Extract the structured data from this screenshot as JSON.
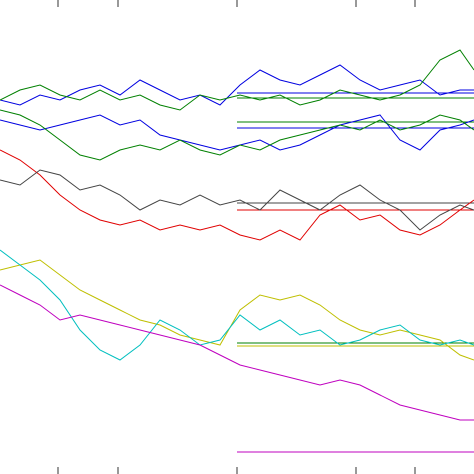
{
  "chart_data": {
    "type": "line",
    "x": [
      0,
      20,
      40,
      60,
      80,
      100,
      120,
      140,
      160,
      180,
      200,
      220,
      240,
      260,
      280,
      300,
      320,
      340,
      360,
      380,
      400,
      420,
      440,
      460,
      474
    ],
    "xlim": [
      0,
      474
    ],
    "ylim": [
      0,
      474
    ],
    "xticks": [
      58,
      118,
      237,
      356,
      415
    ],
    "series": [
      {
        "color": "#0000e0",
        "values": [
          374,
          369,
          379,
          374,
          384,
          389,
          379,
          394,
          384,
          374,
          379,
          369,
          389,
          404,
          394,
          389,
          399,
          409,
          394,
          384,
          389,
          394,
          379,
          384,
          384
        ]
      },
      {
        "color": "#0000e0",
        "values": [
          354,
          349,
          344,
          349,
          354,
          359,
          349,
          354,
          339,
          334,
          329,
          324,
          329,
          334,
          324,
          329,
          339,
          349,
          354,
          359,
          334,
          324,
          344,
          349,
          354
        ]
      },
      {
        "color": "#008000",
        "values": [
          374,
          384,
          389,
          379,
          374,
          384,
          374,
          379,
          369,
          364,
          379,
          374,
          379,
          374,
          379,
          369,
          374,
          384,
          379,
          374,
          379,
          389,
          414,
          424,
          404
        ]
      },
      {
        "color": "#008000",
        "values": [
          364,
          359,
          349,
          334,
          319,
          314,
          324,
          329,
          324,
          334,
          324,
          319,
          329,
          324,
          334,
          339,
          344,
          349,
          344,
          354,
          344,
          349,
          359,
          354,
          344
        ]
      },
      {
        "color": "#e00000",
        "values": [
          324,
          314,
          299,
          279,
          264,
          254,
          249,
          254,
          244,
          249,
          244,
          249,
          239,
          234,
          244,
          234,
          259,
          269,
          254,
          259,
          244,
          239,
          249,
          264,
          274
        ]
      },
      {
        "color": "#444444",
        "values": [
          294,
          289,
          304,
          299,
          284,
          289,
          279,
          264,
          274,
          269,
          279,
          269,
          274,
          264,
          284,
          274,
          264,
          279,
          289,
          274,
          264,
          244,
          259,
          269,
          264
        ]
      },
      {
        "color": "#bfbf00",
        "values": [
          204,
          209,
          214,
          199,
          184,
          174,
          164,
          154,
          149,
          139,
          134,
          129,
          164,
          179,
          174,
          179,
          169,
          154,
          144,
          139,
          144,
          139,
          134,
          119,
          114
        ]
      },
      {
        "color": "#00bfbf",
        "values": [
          224,
          209,
          194,
          174,
          144,
          124,
          114,
          129,
          154,
          144,
          129,
          134,
          159,
          144,
          154,
          139,
          144,
          129,
          134,
          144,
          149,
          134,
          129,
          134,
          129
        ]
      },
      {
        "color": "#bf00bf",
        "values": [
          189,
          179,
          169,
          154,
          159,
          154,
          149,
          144,
          139,
          134,
          129,
          119,
          109,
          104,
          99,
          94,
          89,
          94,
          89,
          79,
          69,
          64,
          59,
          54,
          54
        ]
      }
    ],
    "reference_lines": [
      {
        "color": "#0000e0",
        "value": 381,
        "x": [
          237,
          474
        ]
      },
      {
        "color": "#0000e0",
        "value": 346,
        "x": [
          237,
          474
        ]
      },
      {
        "color": "#008000",
        "value": 376,
        "x": [
          237,
          474
        ]
      },
      {
        "color": "#008000",
        "value": 352,
        "x": [
          237,
          474
        ]
      },
      {
        "color": "#444444",
        "value": 271,
        "x": [
          237,
          474
        ]
      },
      {
        "color": "#e00000",
        "value": 264,
        "x": [
          237,
          474
        ]
      },
      {
        "color": "#008000",
        "value": 131,
        "x": [
          237,
          474
        ]
      },
      {
        "color": "#bfbf00",
        "value": 128,
        "x": [
          237,
          474
        ]
      },
      {
        "color": "#bf00bf",
        "value": 22,
        "x": [
          237,
          474
        ]
      }
    ]
  }
}
